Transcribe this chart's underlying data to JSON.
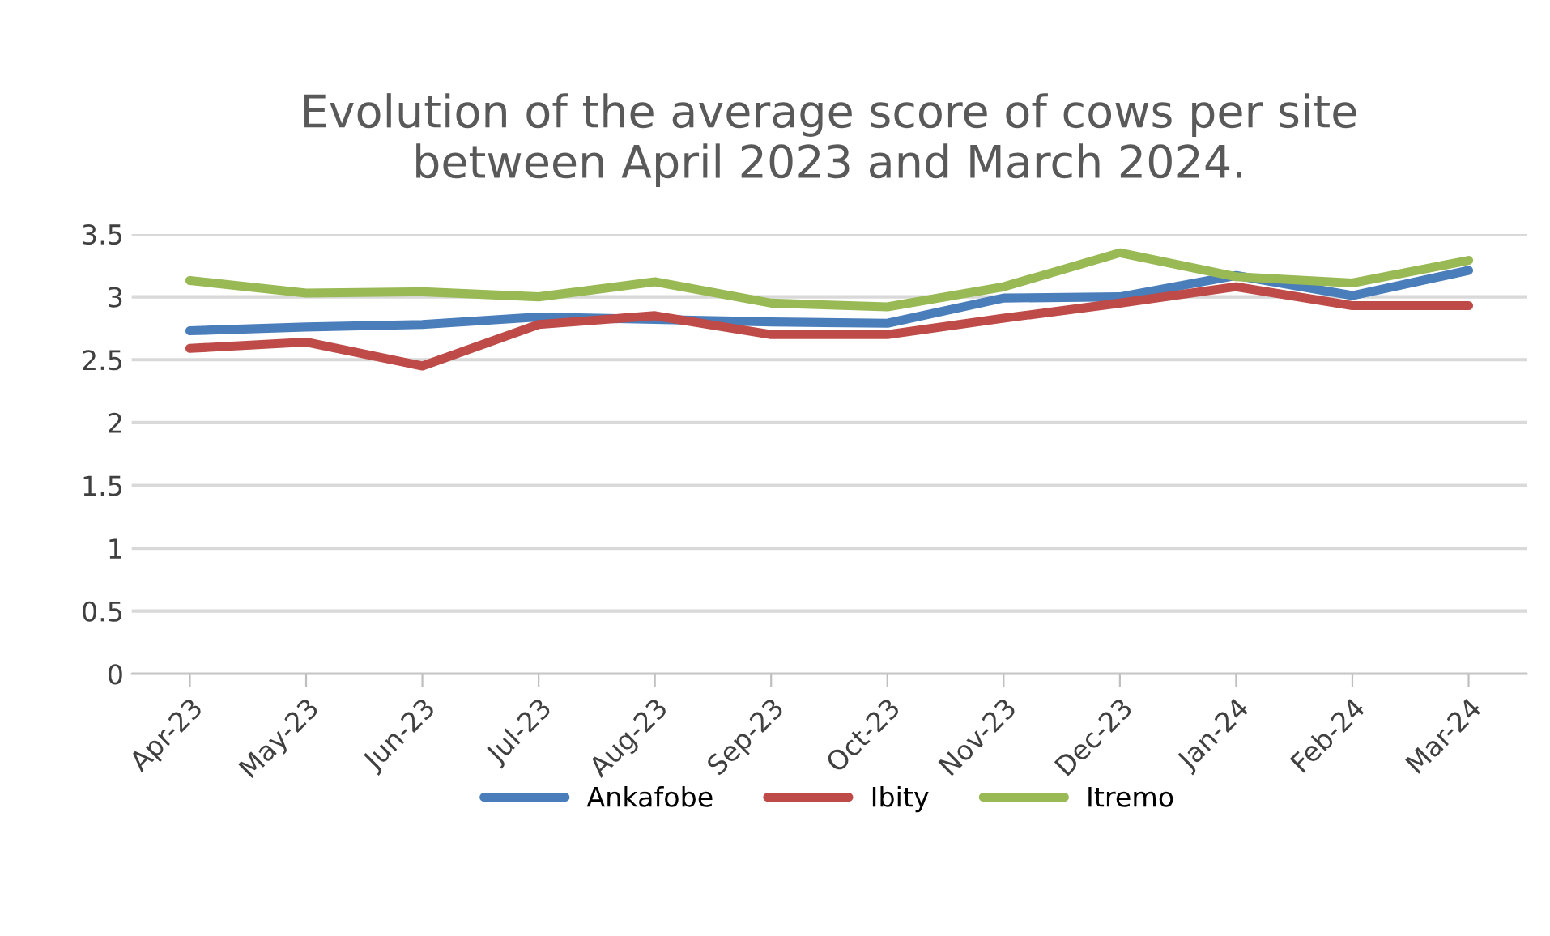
{
  "chart_data": {
    "type": "line",
    "title": "Evolution of the average score of cows per site\nbetween April 2023 and March 2024.",
    "categories": [
      "Apr-23",
      "May-23",
      "Jun-23",
      "Jul-23",
      "Aug-23",
      "Sep-23",
      "Oct-23",
      "Nov-23",
      "Dec-23",
      "Jan-24",
      "Feb-24",
      "Mar-24"
    ],
    "series": [
      {
        "name": "Ankafobe",
        "color": "#4a7ebb",
        "values": [
          2.73,
          2.76,
          2.78,
          2.84,
          2.82,
          2.8,
          2.79,
          2.99,
          3.0,
          3.17,
          3.01,
          3.21
        ]
      },
      {
        "name": "Ibity",
        "color": "#be4b48",
        "values": [
          2.59,
          2.64,
          2.45,
          2.78,
          2.85,
          2.7,
          2.7,
          2.83,
          2.95,
          3.08,
          2.93,
          2.93
        ]
      },
      {
        "name": "Itremo",
        "color": "#98b954",
        "values": [
          3.13,
          3.03,
          3.04,
          3.0,
          3.12,
          2.95,
          2.92,
          3.08,
          3.35,
          3.16,
          3.11,
          3.29
        ]
      }
    ],
    "ylim": [
      0,
      3.5
    ],
    "yticks": [
      0,
      0.5,
      1,
      1.5,
      2,
      2.5,
      3,
      3.5
    ],
    "grid": "y",
    "legend": "bottom",
    "marker": "none",
    "line_style": "solid"
  }
}
